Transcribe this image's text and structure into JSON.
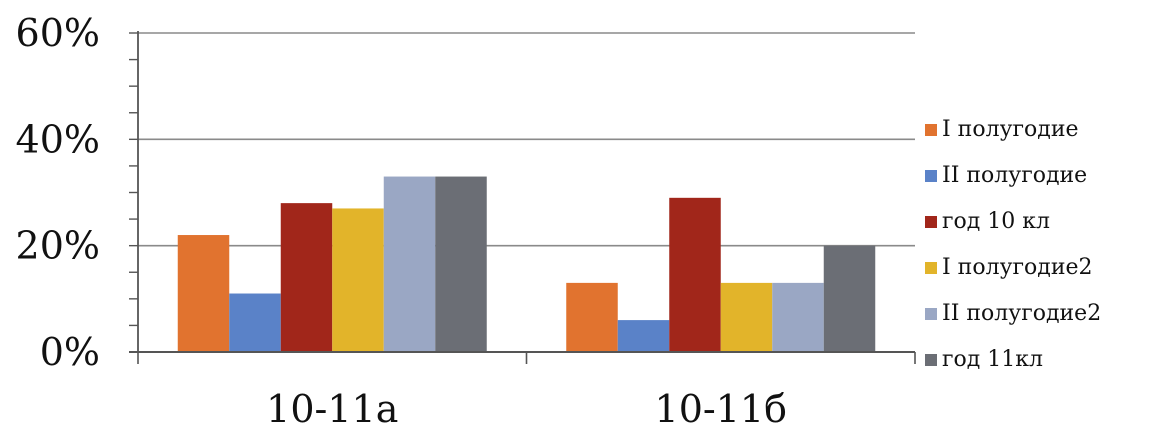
{
  "chart_data": {
    "type": "bar",
    "categories": [
      "10-11а",
      "10-11б"
    ],
    "ylim": [
      0,
      60
    ],
    "yticks": [
      "0%",
      "20%",
      "40%",
      "60%"
    ],
    "grid": true,
    "legend_position": "right",
    "series": [
      {
        "name": "I полугодие",
        "color": "#e1732f",
        "values": [
          22,
          13
        ]
      },
      {
        "name": "II полугодие",
        "color": "#5a82c8",
        "values": [
          11,
          6
        ]
      },
      {
        "name": "год 10 кл",
        "color": "#a1261a",
        "values": [
          28,
          29
        ]
      },
      {
        "name": "I полугодие2",
        "color": "#e2b42a",
        "values": [
          27,
          13
        ]
      },
      {
        "name": "II полугодие2",
        "color": "#9aa7c4",
        "values": [
          33,
          13
        ]
      },
      {
        "name": "год 11кл",
        "color": "#6b6e75",
        "values": [
          33,
          20
        ]
      }
    ]
  }
}
